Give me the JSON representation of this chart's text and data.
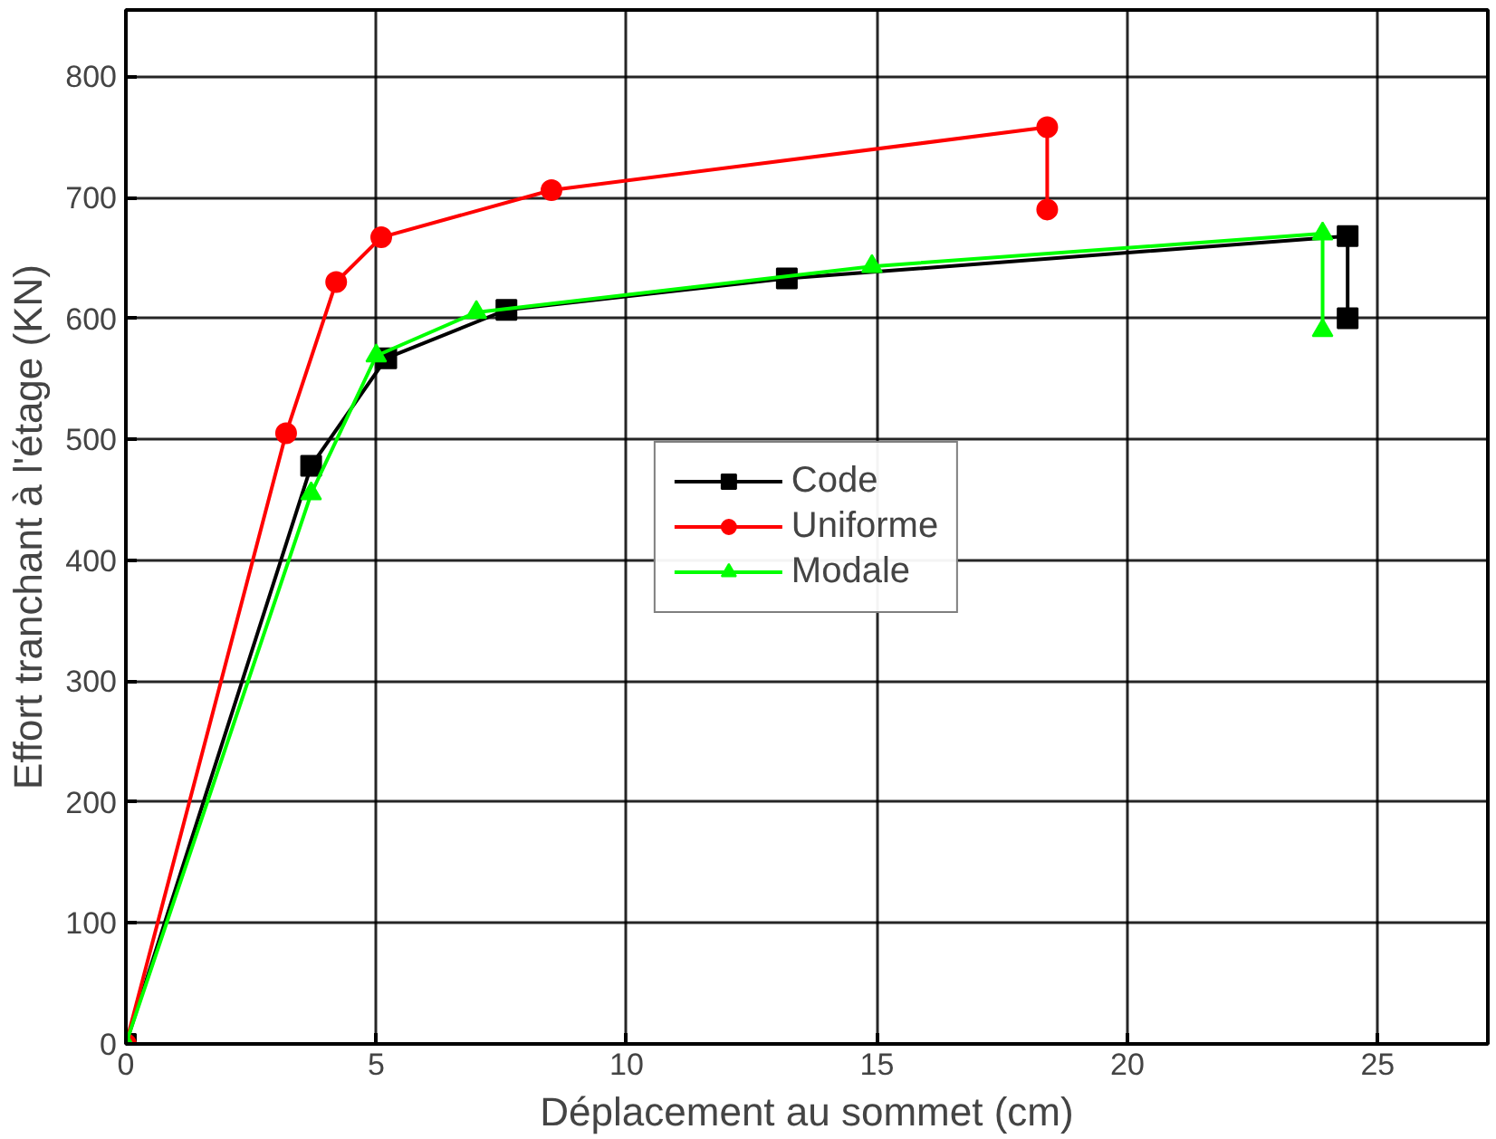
{
  "chart_data": {
    "type": "line",
    "xlabel": "Déplacement au sommet (cm)",
    "ylabel": "Effort tranchant à l'étage (KN)",
    "xlim": [
      0,
      27.2
    ],
    "ylim": [
      0,
      855
    ],
    "xticks": [
      0,
      5,
      10,
      15,
      20,
      25
    ],
    "yticks": [
      0,
      100,
      200,
      300,
      400,
      500,
      600,
      700,
      800
    ],
    "grid": true,
    "legend": "center",
    "series": [
      {
        "name": "Code",
        "color": "#000000",
        "marker": "square",
        "x": [
          0,
          3.7,
          5.2,
          7.6,
          13.2,
          24.4,
          24.4
        ],
        "values": [
          0,
          478,
          567,
          607,
          633,
          668,
          600
        ]
      },
      {
        "name": "Uniforme",
        "color": "#ff0000",
        "marker": "circle",
        "x": [
          0,
          3.2,
          4.2,
          5.1,
          8.5,
          18.4,
          18.4
        ],
        "values": [
          0,
          505,
          630,
          667,
          706,
          758,
          690
        ]
      },
      {
        "name": "Modale",
        "color": "#00ff00",
        "marker": "triangle",
        "x": [
          0,
          3.7,
          5.0,
          7.0,
          14.9,
          23.9,
          23.9
        ],
        "values": [
          0,
          455,
          569,
          605,
          643,
          670,
          590
        ]
      }
    ]
  }
}
